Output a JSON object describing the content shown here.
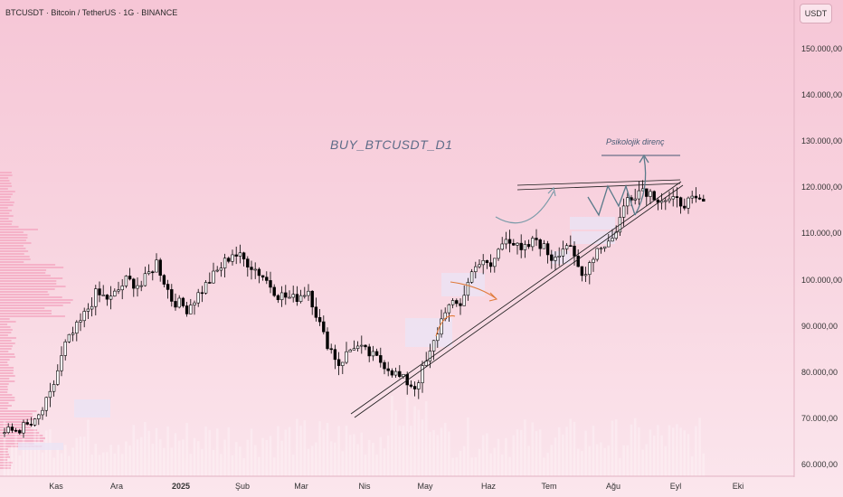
{
  "header": {
    "symbol": "BTCUSDT · Bitcoin / TetherUS · 1G · BINANCE",
    "currency_button": "USDT"
  },
  "watermark": "BUY_BTCUSDT_D1",
  "annotation": "Psikolojik direnç",
  "colors": {
    "up_candle": "#ffffff",
    "down_candle": "#000000",
    "trendline": "#1a1a1a",
    "target_arrow": "#5a7a8a",
    "curve_arrow": "#7a9aa8",
    "orange_arrow": "#e07a3a",
    "volume_profile": "#f4a9c2"
  },
  "chart_data": {
    "type": "candlestick",
    "x_axis": {
      "labels": [
        "Kas",
        "Ara",
        "2025",
        "Şub",
        "Mar",
        "Nis",
        "May",
        "Haz",
        "Tem",
        "Ağu",
        "Eyl",
        "Eki"
      ]
    },
    "y_axis": {
      "labels": [
        "150.000,00",
        "140.000,00",
        "130.000,00",
        "120.000,00",
        "110.000,00",
        "100.000,00",
        "90.000,00",
        "80.000,00",
        "70.000,00",
        "60.000,00"
      ],
      "range": [
        58500,
        160000
      ]
    },
    "series": [
      {
        "x": 0,
        "y": 67000
      },
      {
        "x": 8,
        "y": 69000
      },
      {
        "x": 12,
        "y": 75000
      },
      {
        "x": 16,
        "y": 86000
      },
      {
        "x": 20,
        "y": 91000
      },
      {
        "x": 24,
        "y": 97000
      },
      {
        "x": 28,
        "y": 96000
      },
      {
        "x": 32,
        "y": 100000
      },
      {
        "x": 36,
        "y": 99000
      },
      {
        "x": 40,
        "y": 104000
      },
      {
        "x": 44,
        "y": 96000
      },
      {
        "x": 48,
        "y": 94000
      },
      {
        "x": 52,
        "y": 98000
      },
      {
        "x": 56,
        "y": 102000
      },
      {
        "x": 60,
        "y": 106000
      },
      {
        "x": 64,
        "y": 104000
      },
      {
        "x": 68,
        "y": 101000
      },
      {
        "x": 72,
        "y": 97000
      },
      {
        "x": 76,
        "y": 96000
      },
      {
        "x": 80,
        "y": 98000
      },
      {
        "x": 84,
        "y": 88000
      },
      {
        "x": 88,
        "y": 82000
      },
      {
        "x": 92,
        "y": 86000
      },
      {
        "x": 96,
        "y": 84000
      },
      {
        "x": 100,
        "y": 82000
      },
      {
        "x": 104,
        "y": 79000
      },
      {
        "x": 108,
        "y": 77000
      },
      {
        "x": 112,
        "y": 84000
      },
      {
        "x": 116,
        "y": 94000
      },
      {
        "x": 120,
        "y": 95000
      },
      {
        "x": 124,
        "y": 104000
      },
      {
        "x": 128,
        "y": 103000
      },
      {
        "x": 132,
        "y": 110000
      },
      {
        "x": 136,
        "y": 106000
      },
      {
        "x": 140,
        "y": 109000
      },
      {
        "x": 144,
        "y": 105000
      },
      {
        "x": 148,
        "y": 108000
      },
      {
        "x": 152,
        "y": 101000
      },
      {
        "x": 156,
        "y": 107000
      },
      {
        "x": 160,
        "y": 109000
      },
      {
        "x": 164,
        "y": 118000
      },
      {
        "x": 168,
        "y": 120000
      },
      {
        "x": 172,
        "y": 118000
      },
      {
        "x": 176,
        "y": 117000
      }
    ],
    "drawings": {
      "resistance_band": [
        122500,
        121000
      ],
      "ascending_support": {
        "from": [
          5,
          71000
        ],
        "to": [
          190,
          122000
        ]
      },
      "target": 128000
    }
  }
}
